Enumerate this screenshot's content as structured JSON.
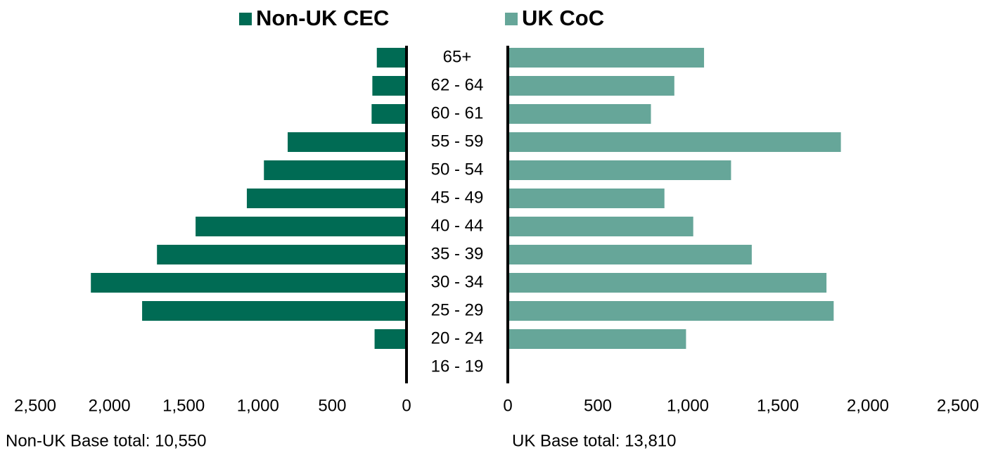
{
  "chart_data": {
    "type": "butterfly",
    "categories": [
      "65+",
      "62 - 64",
      "60 - 61",
      "55 - 59",
      "50 - 54",
      "45 - 49",
      "40 - 44",
      "35 - 39",
      "30 - 34",
      "25 - 29",
      "20 - 24",
      "16 - 19"
    ],
    "series": [
      {
        "name": "Non-UK CEC",
        "color": "#006b54",
        "side": "left",
        "values": [
          200,
          230,
          235,
          800,
          960,
          1075,
          1420,
          1680,
          2125,
          1780,
          215,
          0
        ],
        "xlim": [
          0,
          2500
        ],
        "xticks": [
          0,
          500,
          {
            "value": 1000,
            "label": "1,000"
          },
          {
            "value": 1500,
            "label": "1,500"
          },
          {
            "value": 2000,
            "label": "2,000"
          },
          {
            "value": 2500,
            "label": "2,500"
          }
        ]
      },
      {
        "name": "UK CoC",
        "color": "#66a699",
        "side": "right",
        "values": [
          1090,
          925,
          795,
          1850,
          1240,
          870,
          1030,
          1355,
          1770,
          1810,
          990,
          0
        ],
        "xlim": [
          0,
          2500
        ],
        "xticks": [
          0,
          500,
          {
            "value": 1000,
            "label": "1,000"
          },
          {
            "value": 1500,
            "label": "1,500"
          },
          {
            "value": 2000,
            "label": "2,000"
          },
          {
            "value": 2500,
            "label": "2,500"
          }
        ]
      }
    ],
    "notes": [
      "Non-UK Base total: 10,550",
      "UK Base total: 13,810"
    ]
  }
}
